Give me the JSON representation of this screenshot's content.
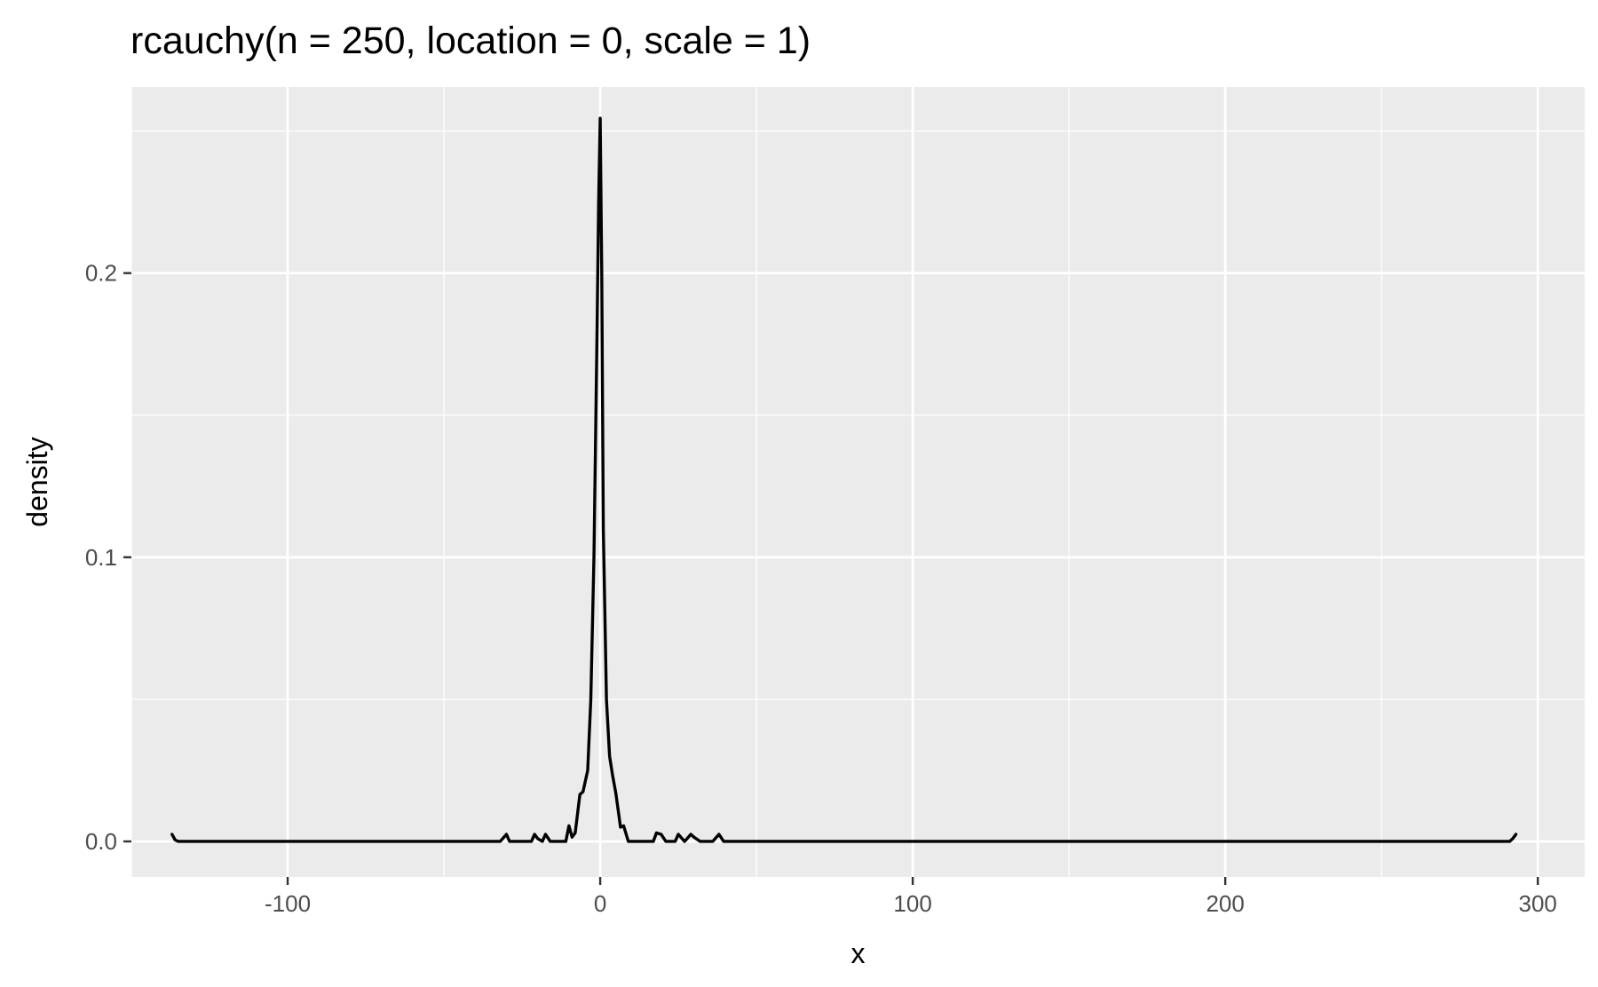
{
  "chart_data": {
    "type": "line",
    "title": "rcauchy(n = 250, location = 0, scale = 1)",
    "xlabel": "x",
    "ylabel": "density",
    "xlim": [
      -150,
      315
    ],
    "ylim": [
      -0.0125,
      0.2655
    ],
    "x_ticks": [
      {
        "value": -100,
        "label": "-100"
      },
      {
        "value": 0,
        "label": "0"
      },
      {
        "value": 100,
        "label": "100"
      },
      {
        "value": 200,
        "label": "200"
      },
      {
        "value": 300,
        "label": "300"
      }
    ],
    "y_ticks": [
      {
        "value": 0.0,
        "label": "0.0"
      },
      {
        "value": 0.1,
        "label": "0.1"
      },
      {
        "value": 0.2,
        "label": "0.2"
      }
    ],
    "x_minor_breaks": [
      -150,
      -50,
      50,
      150,
      250
    ],
    "y_minor_breaks": [
      0.05,
      0.15,
      0.25
    ],
    "grid": true,
    "panel_background": "#ebebeb",
    "grid_color": "#ffffff",
    "line_color": "#000000",
    "series": [
      {
        "x": [
          -137.0,
          -136.0,
          -135.0,
          -100.0,
          -50.0,
          -32.0,
          -30.0,
          -29.0,
          -27.0,
          -22.0,
          -21.0,
          -20.0,
          -18.5,
          -17.5,
          -16.0,
          -14.0,
          -11.0,
          -10.0,
          -9.0,
          -8.0,
          -6.5,
          -5.5,
          -4.0,
          -3.0,
          -2.0,
          -1.0,
          -0.5,
          0.0,
          0.5,
          1.0,
          2.0,
          3.0,
          4.0,
          5.0,
          6.5,
          7.5,
          9.0,
          10.0,
          11.0,
          12.5,
          17.0,
          18.0,
          19.5,
          21.0,
          24.0,
          25.0,
          27.0,
          29.0,
          30.0,
          32.0,
          36.0,
          38.0,
          39.5,
          41.0,
          100.0,
          200.0,
          291.0,
          292.0,
          293.0
        ],
        "y": [
          0.0025,
          0.0005,
          0.0,
          0.0,
          0.0,
          0.0,
          0.0025,
          0.0,
          0.0,
          0.0,
          0.0025,
          0.001,
          0.0,
          0.0025,
          0.0,
          0.0,
          0.0,
          0.0055,
          0.0015,
          0.003,
          0.0165,
          0.0175,
          0.025,
          0.05,
          0.1,
          0.18,
          0.225,
          0.2545,
          0.2,
          0.11,
          0.05,
          0.03,
          0.023,
          0.017,
          0.005,
          0.0055,
          0.0,
          0.0,
          0.0,
          0.0,
          0.0,
          0.003,
          0.0025,
          0.0,
          0.0,
          0.0025,
          0.0,
          0.0025,
          0.0015,
          0.0,
          0.0,
          0.0025,
          0.0,
          0.0,
          0.0,
          0.0,
          0.0,
          0.001,
          0.0025
        ]
      }
    ]
  }
}
